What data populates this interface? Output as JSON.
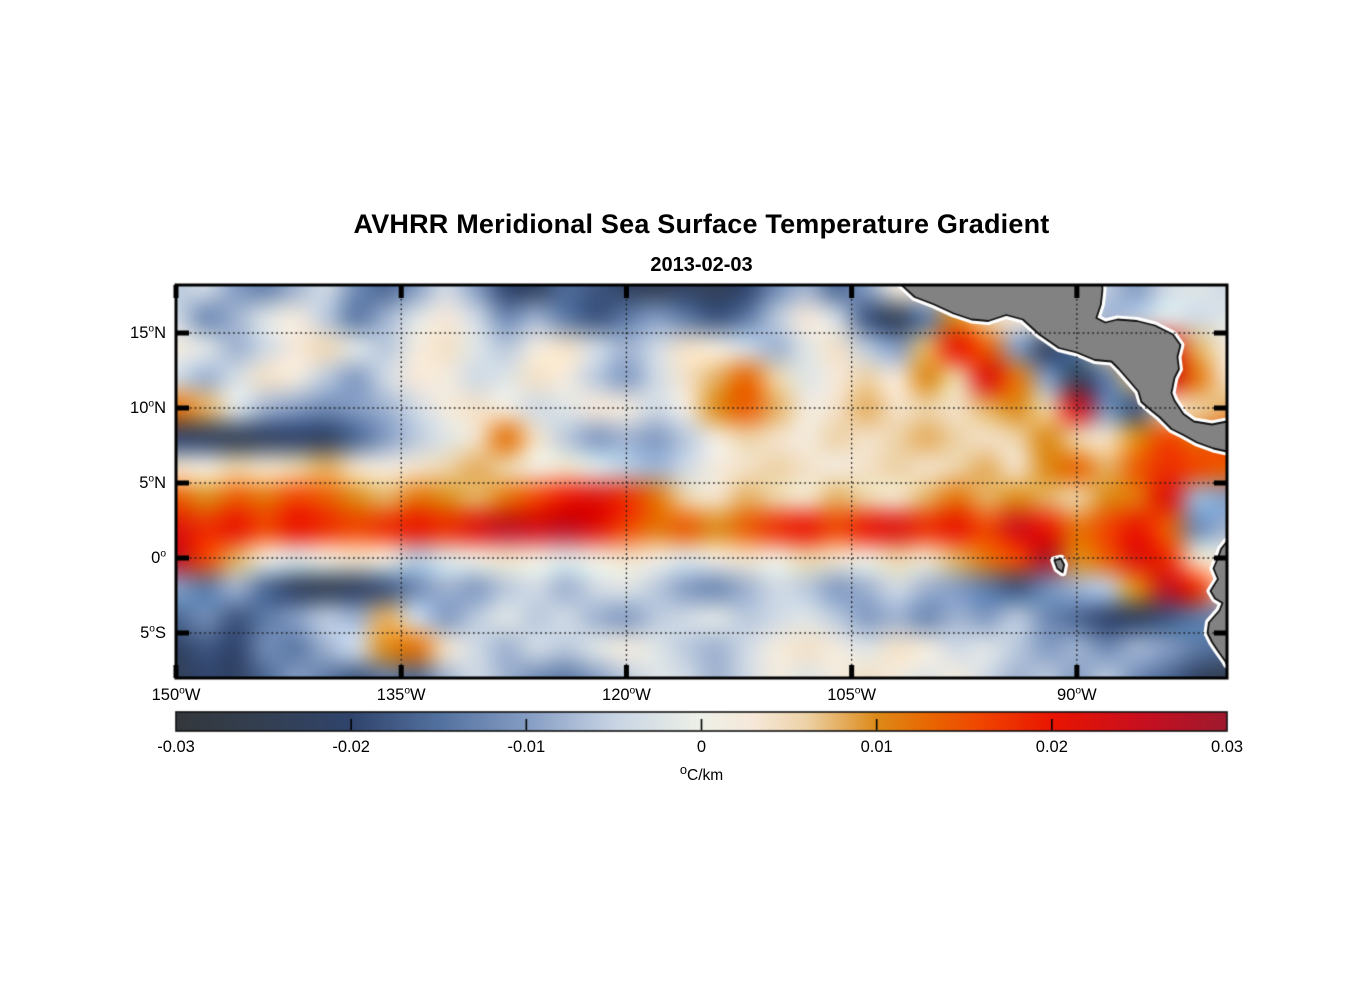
{
  "chart_data": {
    "type": "heatmap",
    "title": "AVHRR Meridional Sea Surface Temperature Gradient",
    "date": "2013-02-03",
    "unit": "°C/km",
    "lon_range": [
      -150,
      -80
    ],
    "lat_range": [
      -8,
      18.2
    ],
    "grid_on": true,
    "xticks": [
      {
        "lon": -150,
        "label": "150°W"
      },
      {
        "lon": -135,
        "label": "135°W"
      },
      {
        "lon": -120,
        "label": "120°W"
      },
      {
        "lon": -105,
        "label": "105°W"
      },
      {
        "lon": -90,
        "label": "90°W"
      }
    ],
    "yticks": [
      {
        "lat": 15,
        "label": "15°N"
      },
      {
        "lat": 10,
        "label": "10°N"
      },
      {
        "lat": 5,
        "label": "5°N"
      },
      {
        "lat": 0,
        "label": "0°"
      },
      {
        "lat": -5,
        "label": "5°S"
      }
    ],
    "colorbar": {
      "min": -0.03,
      "max": 0.03,
      "ticks": [
        -0.03,
        -0.02,
        -0.01,
        0,
        0.01,
        0.02,
        0.03
      ],
      "tick_labels": [
        "-0.03",
        "-0.02",
        "-0.01",
        "0",
        "0.01",
        "0.02",
        "0.03"
      ]
    },
    "colormap": [
      [
        -0.03,
        "#34383c"
      ],
      [
        -0.025,
        "#333f52"
      ],
      [
        -0.02,
        "#30446c"
      ],
      [
        -0.015,
        "#53719f"
      ],
      [
        -0.01,
        "#849cc3"
      ],
      [
        -0.005,
        "#c8d4e4"
      ],
      [
        0.0,
        "#eef1e8"
      ],
      [
        0.003,
        "#f6e8d9"
      ],
      [
        0.006,
        "#edd2a7"
      ],
      [
        0.01,
        "#dd8a18"
      ],
      [
        0.013,
        "#e96702"
      ],
      [
        0.016,
        "#f04500"
      ],
      [
        0.02,
        "#ea1500"
      ],
      [
        0.025,
        "#c90f1f"
      ],
      [
        0.03,
        "#9e1a2e"
      ]
    ],
    "grid": {
      "lons": [
        -150,
        -148,
        -146,
        -144,
        -142,
        -140,
        -138,
        -136,
        -134,
        -132,
        -130,
        -128,
        -126,
        -124,
        -122,
        -120,
        -118,
        -116,
        -114,
        -112,
        -110,
        -108,
        -106,
        -104,
        -102,
        -100,
        -98,
        -96,
        -94,
        -92,
        -90,
        -88,
        -86,
        -84,
        -82,
        -80
      ],
      "lats": [
        18,
        16,
        14,
        12,
        10,
        8,
        6,
        4,
        2,
        0,
        -2,
        -4,
        -6,
        -8
      ],
      "values": [
        [
          -0.006,
          -0.004,
          -0.01,
          -0.013,
          -0.008,
          -0.004,
          -0.012,
          -0.016,
          -0.01,
          -0.004,
          -0.01,
          -0.02,
          -0.022,
          -0.016,
          -0.018,
          -0.022,
          -0.024,
          -0.022,
          -0.024,
          -0.02,
          -0.012,
          -0.008,
          -0.016,
          -0.01,
          0.002,
          0.004,
          0.004,
          0.002,
          0.004,
          0.002,
          -0.004,
          -0.006,
          -0.01,
          -0.004,
          -0.002,
          -0.004
        ],
        [
          -0.004,
          -0.012,
          -0.008,
          -0.002,
          0.002,
          -0.006,
          -0.014,
          -0.008,
          -0.002,
          0.003,
          -0.004,
          -0.012,
          -0.008,
          -0.014,
          -0.018,
          -0.014,
          -0.01,
          -0.014,
          -0.018,
          -0.014,
          -0.006,
          0.003,
          -0.004,
          -0.018,
          -0.024,
          -0.014,
          0.01,
          0.006,
          0.003,
          0.004,
          -0.002,
          -0.008,
          -0.006,
          -0.002,
          -0.004,
          -0.002
        ],
        [
          0.002,
          -0.002,
          -0.008,
          -0.004,
          0.003,
          0.005,
          -0.002,
          -0.006,
          0.002,
          0.004,
          -0.002,
          -0.006,
          0.002,
          0.004,
          -0.004,
          -0.008,
          -0.004,
          0.004,
          0.002,
          -0.004,
          -0.008,
          -0.002,
          0.004,
          -0.006,
          -0.01,
          0.008,
          0.02,
          0.014,
          -0.01,
          -0.022,
          -0.014,
          0.006,
          0.012,
          0.022,
          0.008,
          0.002
        ],
        [
          -0.004,
          -0.008,
          -0.003,
          0.004,
          0.002,
          -0.006,
          -0.01,
          -0.004,
          0.003,
          0.002,
          -0.004,
          -0.002,
          0.004,
          0.002,
          -0.006,
          -0.01,
          -0.004,
          0.004,
          0.008,
          0.013,
          0.006,
          -0.002,
          0.003,
          0.006,
          0.003,
          0.01,
          0.006,
          0.022,
          0.012,
          -0.01,
          -0.024,
          -0.014,
          0.008,
          0.024,
          0.012,
          0.004
        ],
        [
          0.012,
          0.008,
          -0.002,
          -0.008,
          -0.01,
          -0.012,
          -0.01,
          -0.008,
          -0.004,
          0.002,
          0.004,
          0.002,
          -0.004,
          -0.002,
          0.003,
          0.002,
          -0.004,
          0.002,
          0.01,
          0.014,
          0.008,
          0.002,
          0.004,
          0.008,
          0.004,
          0.006,
          0.004,
          0.008,
          0.01,
          0.006,
          0.024,
          -0.012,
          -0.018,
          0.004,
          0.006,
          0.008
        ],
        [
          -0.02,
          -0.022,
          -0.024,
          -0.022,
          -0.02,
          -0.022,
          -0.016,
          -0.01,
          -0.006,
          -0.002,
          0.004,
          0.012,
          0.004,
          -0.006,
          -0.01,
          -0.008,
          -0.01,
          -0.006,
          0.002,
          0.006,
          0.004,
          0.002,
          0.006,
          0.004,
          0.006,
          0.008,
          0.006,
          0.004,
          0.006,
          0.01,
          0.006,
          0.004,
          0.01,
          0.016,
          0.012,
          0.016
        ],
        [
          0.004,
          0.002,
          0.006,
          0.004,
          0.006,
          0.008,
          0.004,
          0.002,
          0.004,
          0.006,
          0.008,
          0.006,
          0.002,
          0.004,
          -0.002,
          -0.006,
          -0.008,
          -0.004,
          0.002,
          0.004,
          0.006,
          0.004,
          0.002,
          0.004,
          0.006,
          0.004,
          0.006,
          0.008,
          0.004,
          0.01,
          0.013,
          0.008,
          0.014,
          0.018,
          0.016,
          0.014
        ],
        [
          0.014,
          0.01,
          0.014,
          0.012,
          0.016,
          0.014,
          0.01,
          0.008,
          0.012,
          0.01,
          0.008,
          0.012,
          0.016,
          0.02,
          0.022,
          0.018,
          0.012,
          0.006,
          0.004,
          0.008,
          0.006,
          0.004,
          0.008,
          0.006,
          0.004,
          0.008,
          0.012,
          0.008,
          0.01,
          0.008,
          0.006,
          0.01,
          0.012,
          0.022,
          -0.008,
          -0.01
        ],
        [
          0.022,
          0.018,
          0.02,
          0.016,
          0.02,
          0.018,
          0.016,
          0.018,
          0.02,
          0.018,
          0.022,
          0.026,
          0.024,
          0.026,
          0.022,
          0.016,
          0.012,
          0.014,
          0.01,
          0.014,
          0.018,
          0.02,
          0.016,
          0.02,
          0.022,
          0.018,
          0.02,
          0.016,
          0.024,
          0.02,
          0.012,
          0.016,
          0.02,
          0.014,
          -0.012,
          -0.008
        ],
        [
          0.026,
          0.016,
          0.008,
          0.002,
          -0.002,
          0.002,
          0.004,
          0.002,
          -0.006,
          -0.002,
          0.002,
          0.004,
          0.002,
          -0.002,
          0.002,
          0.004,
          0.002,
          -0.002,
          0.002,
          0.004,
          0.002,
          0.006,
          0.004,
          0.002,
          0.006,
          0.004,
          0.008,
          0.012,
          0.016,
          0.028,
          0.01,
          0.014,
          0.022,
          0.018,
          0.004,
          0.002
        ],
        [
          -0.01,
          -0.014,
          -0.008,
          -0.016,
          -0.022,
          -0.024,
          -0.022,
          -0.018,
          -0.012,
          -0.008,
          -0.01,
          -0.006,
          -0.004,
          -0.008,
          -0.004,
          -0.002,
          -0.006,
          -0.01,
          -0.012,
          -0.008,
          -0.004,
          -0.006,
          -0.01,
          -0.008,
          -0.004,
          -0.008,
          -0.01,
          -0.014,
          -0.018,
          -0.012,
          -0.008,
          -0.006,
          0.01,
          0.026,
          0.018,
          0.004
        ],
        [
          -0.016,
          -0.012,
          -0.018,
          -0.014,
          -0.01,
          -0.006,
          -0.008,
          0.008,
          -0.004,
          -0.01,
          -0.006,
          -0.002,
          -0.006,
          -0.004,
          -0.008,
          -0.01,
          -0.006,
          -0.004,
          -0.002,
          -0.006,
          -0.004,
          -0.002,
          -0.006,
          -0.01,
          -0.008,
          -0.012,
          -0.008,
          -0.01,
          -0.006,
          -0.012,
          -0.016,
          -0.02,
          -0.022,
          -0.018,
          -0.014,
          -0.012
        ],
        [
          -0.022,
          -0.018,
          -0.02,
          -0.012,
          -0.014,
          -0.008,
          -0.004,
          0.01,
          0.012,
          0.004,
          -0.004,
          -0.008,
          -0.004,
          -0.006,
          -0.002,
          0.002,
          -0.002,
          -0.006,
          -0.008,
          -0.004,
          0.002,
          0.004,
          0.002,
          -0.002,
          0.004,
          0.002,
          -0.004,
          -0.002,
          -0.006,
          -0.01,
          -0.008,
          -0.012,
          -0.008,
          -0.01,
          -0.014,
          -0.016
        ],
        [
          -0.024,
          -0.02,
          -0.022,
          -0.016,
          -0.01,
          -0.014,
          -0.018,
          -0.014,
          -0.016,
          -0.008,
          -0.004,
          -0.008,
          -0.012,
          -0.014,
          -0.01,
          -0.006,
          -0.002,
          -0.004,
          -0.008,
          -0.004,
          0.002,
          -0.002,
          0.002,
          0.004,
          0.002,
          -0.002,
          0.002,
          -0.004,
          -0.008,
          -0.006,
          -0.01,
          -0.006,
          -0.012,
          -0.016,
          -0.022,
          -0.026
        ]
      ]
    },
    "land": {
      "fill": "#828282",
      "outline": "#111111",
      "halo": "#ffffff",
      "polygons": {
        "central_america": [
          [
            -101.9,
            18.4
          ],
          [
            -100.8,
            17.4
          ],
          [
            -99.5,
            16.9
          ],
          [
            -98.2,
            16.3
          ],
          [
            -97.0,
            15.9
          ],
          [
            -95.9,
            15.8
          ],
          [
            -94.7,
            16.2
          ],
          [
            -93.6,
            15.9
          ],
          [
            -92.5,
            14.9
          ],
          [
            -91.2,
            14.0
          ],
          [
            -90.0,
            13.7
          ],
          [
            -88.8,
            13.2
          ],
          [
            -87.7,
            13.1
          ],
          [
            -87.2,
            12.6
          ],
          [
            -86.5,
            11.8
          ],
          [
            -85.9,
            11.1
          ],
          [
            -85.7,
            10.4
          ],
          [
            -85.0,
            9.8
          ],
          [
            -84.5,
            9.4
          ],
          [
            -83.7,
            8.6
          ],
          [
            -82.9,
            8.2
          ],
          [
            -82.0,
            7.7
          ],
          [
            -80.9,
            7.3
          ],
          [
            -80.0,
            7.1
          ],
          [
            -80.0,
            9.1
          ],
          [
            -81.0,
            8.9
          ],
          [
            -82.2,
            9.1
          ],
          [
            -82.9,
            9.6
          ],
          [
            -83.5,
            10.5
          ],
          [
            -83.7,
            11.0
          ],
          [
            -83.5,
            12.0
          ],
          [
            -83.2,
            12.6
          ],
          [
            -83.3,
            13.4
          ],
          [
            -83.1,
            14.2
          ],
          [
            -83.6,
            14.9
          ],
          [
            -84.8,
            15.5
          ],
          [
            -86.0,
            15.8
          ],
          [
            -87.3,
            15.9
          ],
          [
            -88.1,
            15.7
          ],
          [
            -88.7,
            16.0
          ],
          [
            -88.4,
            16.9
          ],
          [
            -88.3,
            17.8
          ],
          [
            -88.3,
            18.4
          ]
        ],
        "south_america": [
          [
            -80.0,
            1.1
          ],
          [
            -80.4,
            0.6
          ],
          [
            -80.6,
            0.0
          ],
          [
            -80.9,
            -0.7
          ],
          [
            -80.6,
            -1.4
          ],
          [
            -81.1,
            -2.2
          ],
          [
            -80.8,
            -2.7
          ],
          [
            -80.3,
            -3.0
          ],
          [
            -80.5,
            -3.5
          ],
          [
            -81.2,
            -4.3
          ],
          [
            -81.3,
            -5.0
          ],
          [
            -81.0,
            -5.6
          ],
          [
            -80.6,
            -6.2
          ],
          [
            -80.1,
            -6.9
          ],
          [
            -80.0,
            -7.1
          ],
          [
            -78.5,
            -7.2
          ],
          [
            -78.5,
            1.2
          ]
        ],
        "galapagos": [
          [
            -91.5,
            -0.15
          ],
          [
            -91.05,
            -0.05
          ],
          [
            -90.85,
            -0.45
          ],
          [
            -90.95,
            -0.95
          ],
          [
            -91.3,
            -0.7
          ]
        ]
      }
    }
  }
}
